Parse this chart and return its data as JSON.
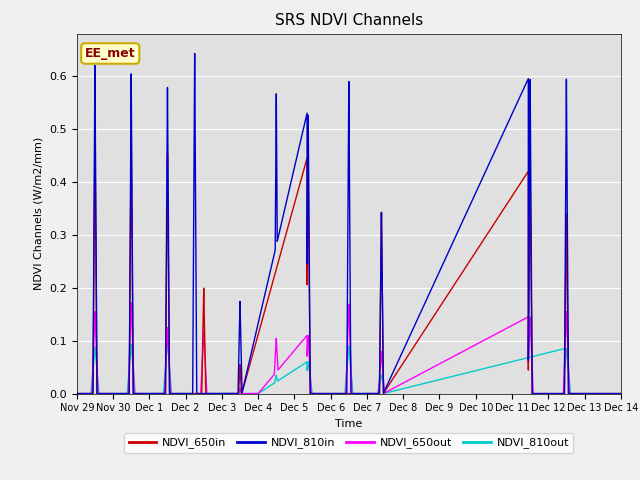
{
  "title": "SRS NDVI Channels",
  "ylabel": "NDVI Channels (W/m2/mm)",
  "xlabel": "Time",
  "annotation": "EE_met",
  "ylim": [
    0.0,
    0.68
  ],
  "colors": {
    "NDVI_650in": "#cc0000",
    "NDVI_810in": "#0000cc",
    "NDVI_650out": "#ff00ff",
    "NDVI_810out": "#00cccc"
  },
  "background_color": "#e0e0e0",
  "x_tick_labels": [
    "Nov 29",
    "Nov 30",
    "Dec 1",
    "Dec 2",
    "Dec 3",
    "Dec 4",
    "Dec 5",
    "Dec 6",
    "Dec 7",
    "Dec 8",
    "Dec 9",
    "Dec 10",
    "Dec 11",
    "Dec 12",
    "Dec 13",
    "Dec 14"
  ],
  "x_tick_positions": [
    0,
    1,
    2,
    3,
    4,
    5,
    6,
    7,
    8,
    9,
    10,
    11,
    12,
    13,
    14,
    15
  ],
  "series": {
    "NDVI_650in": {
      "x": [
        0,
        0.45,
        0.5,
        0.55,
        1,
        1.45,
        1.5,
        1.55,
        2,
        2.45,
        2.5,
        2.55,
        3,
        3.45,
        3.5,
        3.55,
        4,
        4.45,
        4.5,
        4.55,
        5,
        5.45,
        5.5,
        5.55,
        5.8,
        6.35,
        6.38,
        6.42,
        7,
        7.45,
        7.5,
        7.55,
        8,
        8.35,
        8.4,
        8.45,
        9,
        10,
        11,
        11.5,
        12,
        12.45,
        12.5,
        12.55,
        13,
        13.45,
        13.5,
        13.55,
        14,
        15
      ],
      "y": [
        0,
        0,
        0.505,
        0,
        0,
        0,
        0.49,
        0,
        0,
        0,
        0.455,
        0,
        0,
        0,
        0.2,
        0,
        0,
        0,
        0.055,
        0,
        0,
        0,
        0.195,
        0,
        0,
        0,
        0.445,
        0,
        0,
        0,
        0.0,
        0,
        0,
        0,
        0.345,
        0,
        0,
        0,
        0,
        0.42,
        0,
        0,
        0.42,
        0,
        0,
        0,
        0.34,
        0,
        0,
        0
      ]
    },
    "NDVI_810in": {
      "x": [
        0,
        0.45,
        0.5,
        0.55,
        1,
        1.45,
        1.5,
        1.55,
        2,
        2.45,
        2.5,
        2.55,
        3,
        3.2,
        3.25,
        3.3,
        4,
        4.45,
        4.5,
        4.55,
        5,
        5.45,
        5.5,
        5.55,
        5.8,
        6.35,
        6.38,
        6.42,
        7,
        7.45,
        7.5,
        7.55,
        8,
        8.35,
        8.4,
        8.45,
        9,
        10,
        11,
        11.5,
        12,
        12.45,
        12.5,
        12.55,
        13,
        13.45,
        13.5,
        13.55,
        14,
        15
      ],
      "y": [
        0,
        0,
        0.62,
        0,
        0,
        0,
        0.605,
        0,
        0,
        0,
        0.58,
        0,
        0,
        0,
        0.645,
        0,
        0,
        0,
        0.175,
        0,
        0,
        0,
        0.57,
        0,
        0,
        0,
        0.53,
        0,
        0,
        0,
        0.595,
        0,
        0,
        0,
        0.345,
        0,
        0,
        0,
        0,
        0.535,
        0,
        0,
        0.595,
        0,
        0,
        0,
        0.595,
        0,
        0,
        0
      ]
    },
    "NDVI_650out": {
      "x": [
        0,
        0.44,
        0.5,
        0.56,
        1,
        1.44,
        1.5,
        1.56,
        2,
        2.44,
        2.5,
        2.56,
        3,
        3.44,
        3.5,
        3.56,
        4,
        4.44,
        4.5,
        4.56,
        5,
        5.44,
        5.5,
        5.56,
        5.8,
        6.35,
        6.38,
        6.45,
        7,
        7.44,
        7.5,
        7.56,
        8,
        8.34,
        8.4,
        8.46,
        9,
        10,
        11,
        11.5,
        12,
        12.44,
        12.5,
        12.56,
        13,
        13.44,
        13.5,
        13.56,
        14,
        15
      ],
      "y": [
        0,
        0,
        0.155,
        0,
        0,
        0,
        0.172,
        0,
        0,
        0,
        0.125,
        0,
        0,
        0,
        0.12,
        0,
        0,
        0,
        0.01,
        0,
        0,
        0,
        0.105,
        0,
        0,
        0,
        0.11,
        0,
        0,
        0,
        0.17,
        0,
        0,
        0,
        0.08,
        0,
        0,
        0,
        0,
        0.1,
        0,
        0,
        0.145,
        0,
        0,
        0,
        0.155,
        0,
        0,
        0
      ]
    },
    "NDVI_810out": {
      "x": [
        0,
        0.44,
        0.5,
        0.56,
        1,
        1.44,
        1.5,
        1.56,
        2,
        2.44,
        2.5,
        2.56,
        3,
        3.44,
        3.5,
        3.56,
        4,
        4.44,
        4.5,
        4.56,
        5,
        5.44,
        5.5,
        5.56,
        5.8,
        6.35,
        6.38,
        6.45,
        7,
        7.44,
        7.5,
        7.56,
        8,
        8.34,
        8.4,
        8.46,
        9,
        10,
        11,
        13,
        13.44,
        13.5,
        13.56,
        14,
        15
      ],
      "y": [
        0,
        0,
        0.088,
        0,
        0,
        0,
        0.093,
        0,
        0,
        0,
        0.1,
        0,
        0,
        0,
        0.0,
        0,
        0,
        0,
        0.01,
        0,
        0,
        0,
        0.035,
        0,
        0,
        0,
        0.06,
        0,
        0,
        0,
        0.09,
        0,
        0,
        0,
        0.035,
        0,
        0,
        0,
        0.078,
        0,
        0,
        0.085,
        0,
        0,
        0
      ]
    }
  }
}
